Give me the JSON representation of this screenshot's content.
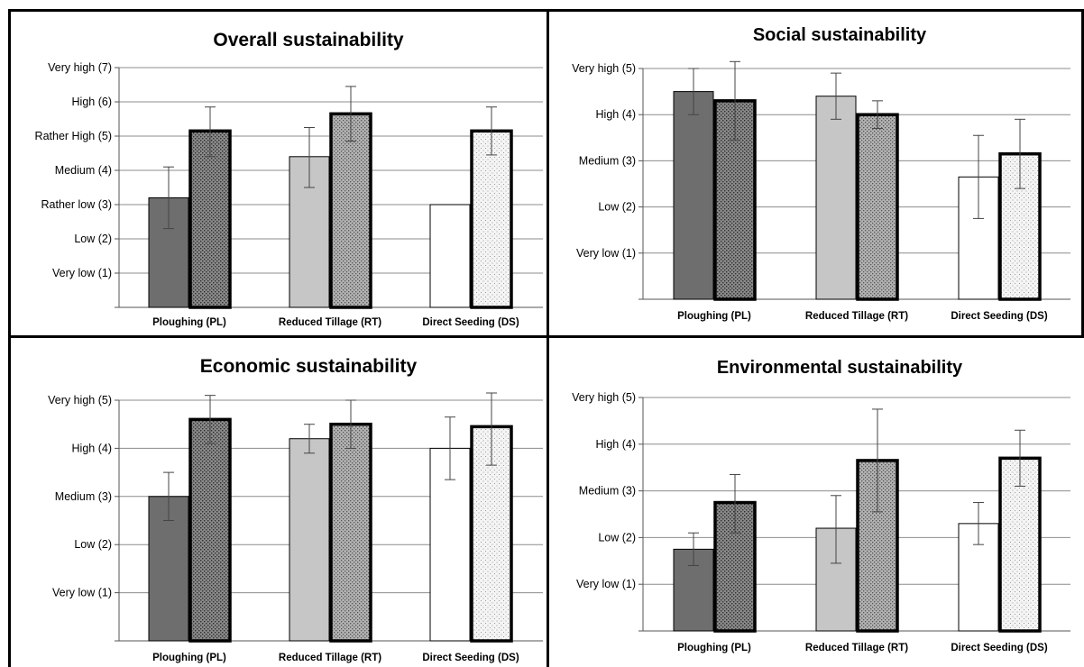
{
  "colors": {
    "pl_dark": "#6e6e6e",
    "pl_pattern_bg": "#8a8a8a",
    "rt_light": "#c6c6c6",
    "rt_pattern_bg": "#b2b2b2",
    "ds_light": "#ffffff",
    "ds_pattern_bg": "#f4f4f4",
    "grid": "#8c8c8c",
    "outline": "#000000"
  },
  "chart_data": [
    {
      "id": "overall",
      "type": "bar",
      "title": "Overall sustainability",
      "categories": [
        "Ploughing (PL)",
        "Reduced Tillage (RT)",
        "Direct Seeding (DS)"
      ],
      "y_tick_labels": [
        "Very low (1)",
        "Low (2)",
        "Rather low (3)",
        "Medium (4)",
        "Rather High (5)",
        "High (6)",
        "Very high (7)"
      ],
      "ylim": [
        0,
        7
      ],
      "grid": true,
      "series": [
        {
          "values": [
            3.2,
            4.4,
            3.0
          ],
          "err_low": [
            0.9,
            0.9,
            null
          ],
          "err_high": [
            0.9,
            0.85,
            null
          ]
        },
        {
          "values": [
            5.15,
            5.65,
            5.15
          ],
          "err_low": [
            0.75,
            0.8,
            0.7
          ],
          "err_high": [
            0.7,
            0.8,
            0.7
          ]
        }
      ]
    },
    {
      "id": "social",
      "type": "bar",
      "title": "Social sustainability",
      "categories": [
        "Ploughing (PL)",
        "Reduced Tillage (RT)",
        "Direct Seeding (DS)"
      ],
      "y_tick_labels": [
        "Very low (1)",
        "Low (2)",
        "Medium (3)",
        "High (4)",
        "Very high (5)"
      ],
      "ylim": [
        0,
        5
      ],
      "grid": true,
      "series": [
        {
          "values": [
            4.5,
            4.4,
            2.65
          ],
          "err_low": [
            0.5,
            0.5,
            0.9
          ],
          "err_high": [
            0.5,
            0.5,
            0.9
          ]
        },
        {
          "values": [
            4.3,
            4.0,
            3.15
          ],
          "err_low": [
            0.85,
            0.3,
            0.75
          ],
          "err_high": [
            0.85,
            0.3,
            0.75
          ]
        }
      ]
    },
    {
      "id": "economic",
      "type": "bar",
      "title": "Economic sustainability",
      "categories": [
        "Ploughing (PL)",
        "Reduced Tillage  (RT)",
        "Direct Seeding  (DS)"
      ],
      "y_tick_labels": [
        "Very low (1)",
        "Low (2)",
        "Medium (3)",
        "High (4)",
        "Very high (5)"
      ],
      "ylim": [
        0,
        5
      ],
      "grid": true,
      "series": [
        {
          "values": [
            3.0,
            4.2,
            4.0
          ],
          "err_low": [
            0.5,
            0.3,
            0.65
          ],
          "err_high": [
            0.5,
            0.3,
            0.65
          ]
        },
        {
          "values": [
            4.6,
            4.5,
            4.45
          ],
          "err_low": [
            0.5,
            0.5,
            0.8
          ],
          "err_high": [
            0.5,
            0.5,
            0.8
          ]
        }
      ]
    },
    {
      "id": "environmental",
      "type": "bar",
      "title": "Environmental sustainability",
      "categories": [
        "Ploughing (PL)",
        "Reduced Tillage (RT)",
        "Direct Seeding (DS)"
      ],
      "y_tick_labels": [
        "Very low (1)",
        "Low (2)",
        "Medium (3)",
        "High (4)",
        "Very high (5)"
      ],
      "ylim": [
        0,
        5
      ],
      "grid": true,
      "series": [
        {
          "values": [
            1.75,
            2.2,
            2.3
          ],
          "err_low": [
            0.35,
            0.75,
            0.45
          ],
          "err_high": [
            0.35,
            0.7,
            0.45
          ]
        },
        {
          "values": [
            2.75,
            3.65,
            3.7
          ],
          "err_low": [
            0.65,
            1.1,
            0.6
          ],
          "err_high": [
            0.6,
            1.1,
            0.6
          ]
        }
      ]
    }
  ]
}
